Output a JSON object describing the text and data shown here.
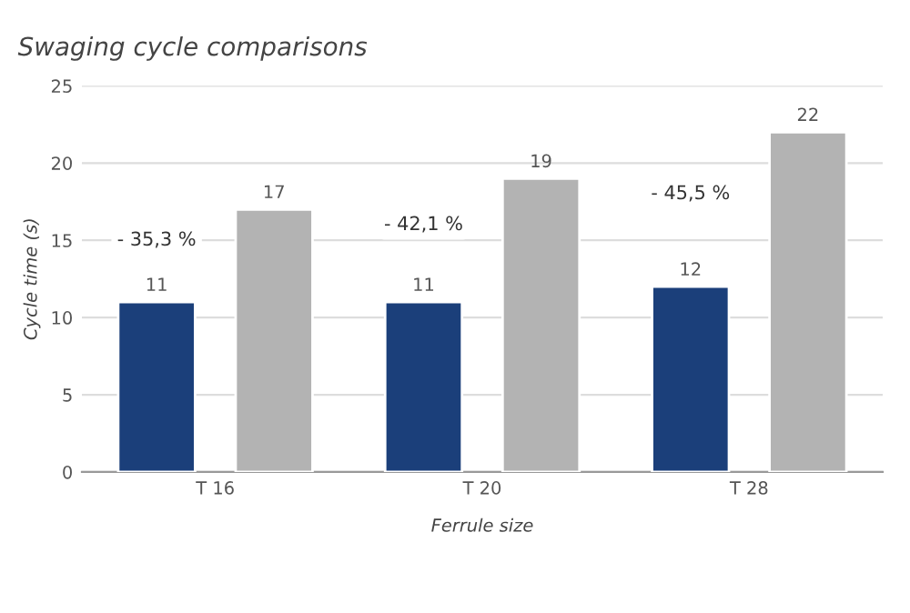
{
  "chart_data": {
    "type": "bar",
    "title": "Swaging cycle comparisons",
    "xlabel": "Ferrule size",
    "ylabel": "Cycle time (s)",
    "categories": [
      "T 16",
      "T 20",
      "T 28"
    ],
    "series": [
      {
        "color": "#1b3f7a",
        "values": [
          11,
          11,
          12
        ]
      },
      {
        "color": "#b3b3b3",
        "values": [
          17,
          19,
          22
        ]
      }
    ],
    "ylim": [
      0,
      25
    ],
    "yticks": [
      0,
      5,
      10,
      15,
      20,
      25
    ],
    "grid": "y",
    "data_labels": true,
    "annotations": [
      "- 35,3 %",
      "- 42,1 %",
      "- 45,5 %"
    ]
  }
}
